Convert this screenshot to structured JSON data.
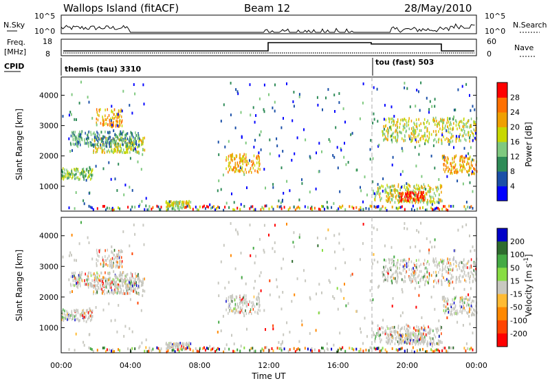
{
  "header": {
    "station": "Wallops Island (fitACF)",
    "beam": "Beam 12",
    "date": "28/May/2010"
  },
  "sky_panel": {
    "left_label": "N.Sky",
    "right_label": "N.Search",
    "ylim_labels": [
      "10^0",
      "10^5"
    ]
  },
  "freq_panel": {
    "left_label_line1": "Freq.",
    "left_label_line2": "[MHz]",
    "left_ticks": [
      "8",
      "18"
    ],
    "right_ticks": [
      "0",
      "60"
    ],
    "right_label": "Nave"
  },
  "cpid_panel": {
    "label": "CPID",
    "programs": [
      {
        "name": "themis (tau) 3310",
        "start_hour": 0,
        "end_hour": 18.05
      },
      {
        "name": "tou (fast) 503",
        "start_hour": 18.05,
        "end_hour": 24
      }
    ]
  },
  "colors": {
    "power": [
      "#0000ff",
      "#1a4fa8",
      "#2e8b57",
      "#7fc97f",
      "#c8d800",
      "#f0a000",
      "#ff7000",
      "#ff0000"
    ],
    "velocity": [
      "#0000c8",
      "#2e6b2e",
      "#44aa44",
      "#88dd44",
      "#c8c8c0",
      "#ffbb33",
      "#ff8800",
      "#ff4400",
      "#ff0000"
    ]
  },
  "chart_data": [
    {
      "type": "heatmap",
      "name": "power",
      "xlabel": "",
      "ylabel": "Slant Range [km]",
      "xlim": [
        0,
        24
      ],
      "ylim": [
        180,
        4600
      ],
      "y_ticks": [
        1000,
        2000,
        3000,
        4000
      ],
      "colorbar_label": "Power [dB]",
      "colorbar_ticks": [
        "4",
        "8",
        "12",
        "16",
        "20",
        "24",
        "28"
      ],
      "regions": [
        {
          "h0": 0.0,
          "h1": 1.8,
          "r_center": 1450,
          "r_width": 180,
          "level": 3
        },
        {
          "h0": 1.8,
          "h1": 4.8,
          "r_center": 2400,
          "r_width": 250,
          "level": 4
        },
        {
          "h0": 0.5,
          "h1": 4.5,
          "r_center": 2600,
          "r_width": 250,
          "level": 2
        },
        {
          "h0": 2.0,
          "h1": 3.5,
          "r_center": 3300,
          "r_width": 300,
          "level": 5
        },
        {
          "h0": 9.5,
          "h1": 11.5,
          "r_center": 1800,
          "r_width": 300,
          "level": 5
        },
        {
          "h0": 18.0,
          "h1": 22.0,
          "r_center": 800,
          "r_width": 300,
          "level": 4
        },
        {
          "h0": 19.5,
          "h1": 21.0,
          "r_center": 700,
          "r_width": 150,
          "level": 7
        },
        {
          "h0": 22.0,
          "h1": 24.0,
          "r_center": 1750,
          "r_width": 300,
          "level": 5
        },
        {
          "h0": 18.5,
          "h1": 24.0,
          "r_center": 2900,
          "r_width": 400,
          "level": 4
        },
        {
          "h0": 6.0,
          "h1": 7.5,
          "r_center": 450,
          "r_width": 100,
          "level": 4
        }
      ]
    },
    {
      "type": "heatmap",
      "name": "velocity",
      "xlabel": "Time UT",
      "ylabel": "Slant Range [km]",
      "xlim": [
        0,
        24
      ],
      "ylim": [
        180,
        4600
      ],
      "x_ticks": [
        "00:00",
        "04:00",
        "08:00",
        "12:00",
        "16:00",
        "20:00",
        "00:00"
      ],
      "y_ticks": [
        1000,
        2000,
        3000,
        4000
      ],
      "colorbar_label": "Velocity [m s^-1]",
      "colorbar_ticks": [
        "200",
        "100",
        "50",
        "15",
        "-15",
        "-50",
        "-100",
        "-200"
      ]
    }
  ]
}
